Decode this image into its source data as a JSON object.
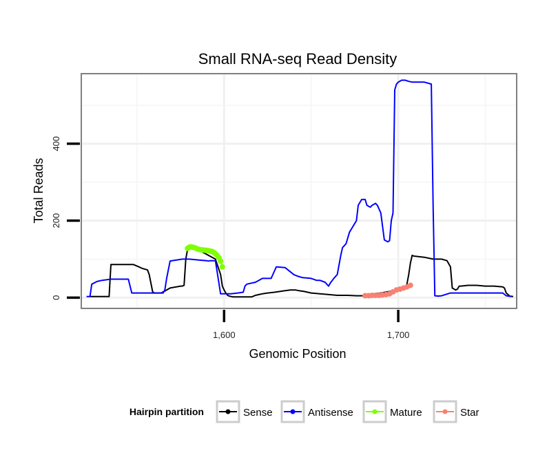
{
  "chart_data": {
    "type": "line",
    "title": "Small RNA-seq Read Density",
    "xlabel": "Genomic Position",
    "ylabel": "Total Reads",
    "xlim": [
      1518,
      1768
    ],
    "ylim": [
      -28,
      582
    ],
    "x_ticks": [
      1600,
      1700
    ],
    "x_tick_labels": [
      "1,600",
      "1,700"
    ],
    "y_ticks": [
      0,
      200,
      400
    ],
    "y_tick_labels": [
      "0",
      "200",
      "400"
    ],
    "grid": true,
    "legend": {
      "title": "Hairpin partition",
      "position": "bottom",
      "entries": [
        {
          "name": "Sense",
          "color": "#000000"
        },
        {
          "name": "Antisense",
          "color": "#0000ff"
        },
        {
          "name": "Mature",
          "color": "#7fff00"
        },
        {
          "name": "Star",
          "color": "#fa8072"
        }
      ]
    },
    "series": [
      {
        "name": "Sense",
        "color": "#000000",
        "style": "line",
        "x": [
          1523,
          1534,
          1535,
          1548,
          1551,
          1553,
          1556,
          1557,
          1559,
          1560,
          1562,
          1564,
          1565,
          1566,
          1569,
          1575,
          1576,
          1577,
          1578,
          1579,
          1580,
          1584,
          1587,
          1591,
          1595,
          1598,
          1599,
          1600,
          1601,
          1602,
          1603,
          1604,
          1605,
          1606,
          1609,
          1612,
          1616,
          1618,
          1620,
          1622,
          1625,
          1629,
          1632,
          1635,
          1638,
          1641,
          1643,
          1646,
          1650,
          1655,
          1660,
          1665,
          1671,
          1676,
          1681,
          1686,
          1690,
          1695,
          1700,
          1704,
          1705,
          1706,
          1707,
          1708,
          1709,
          1715,
          1720,
          1725,
          1728,
          1730,
          1731,
          1733,
          1734,
          1735,
          1736,
          1740,
          1745,
          1750,
          1755,
          1760,
          1761,
          1762,
          1763,
          1764,
          1766
        ],
        "y": [
          3,
          3,
          86,
          86,
          80,
          76,
          72,
          60,
          15,
          12,
          12,
          12,
          15,
          17,
          25,
          30,
          30,
          32,
          100,
          125,
          130,
          130,
          120,
          110,
          100,
          60,
          30,
          20,
          12,
          6,
          4,
          3,
          2,
          2,
          2,
          2,
          2,
          6,
          8,
          10,
          12,
          14,
          16,
          18,
          20,
          20,
          18,
          16,
          12,
          10,
          8,
          6,
          6,
          5,
          5,
          10,
          12,
          16,
          20,
          24,
          35,
          60,
          90,
          110,
          108,
          105,
          100,
          100,
          96,
          80,
          25,
          20,
          22,
          30,
          30,
          32,
          32,
          30,
          30,
          28,
          25,
          12,
          8,
          4,
          3
        ]
      },
      {
        "name": "Antisense",
        "color": "#0000ff",
        "style": "line",
        "x": [
          1521,
          1523,
          1524,
          1527,
          1530,
          1535,
          1545,
          1547,
          1548,
          1555,
          1560,
          1565,
          1566,
          1567,
          1569,
          1576,
          1580,
          1585,
          1590,
          1591,
          1592,
          1595,
          1598,
          1601,
          1604,
          1608,
          1611,
          1612,
          1613,
          1618,
          1620,
          1622,
          1625,
          1627,
          1630,
          1635,
          1640,
          1642,
          1645,
          1650,
          1653,
          1655,
          1658,
          1659,
          1660,
          1661,
          1662,
          1663,
          1664,
          1665,
          1667,
          1668,
          1670,
          1672,
          1676,
          1677,
          1679,
          1681,
          1682,
          1684,
          1685,
          1687,
          1688,
          1689,
          1690,
          1692,
          1694,
          1695,
          1696,
          1697,
          1698,
          1699,
          1700,
          1702,
          1704,
          1706,
          1708,
          1712,
          1715,
          1719,
          1720,
          1721,
          1723,
          1725,
          1730,
          1740,
          1750,
          1760,
          1762,
          1765
        ],
        "y": [
          3,
          3,
          35,
          42,
          45,
          48,
          48,
          12,
          12,
          12,
          12,
          12,
          20,
          50,
          95,
          100,
          100,
          98,
          96,
          95,
          96,
          96,
          10,
          10,
          10,
          12,
          14,
          30,
          35,
          40,
          45,
          50,
          50,
          50,
          80,
          78,
          60,
          56,
          52,
          50,
          45,
          45,
          40,
          35,
          30,
          38,
          44,
          50,
          55,
          60,
          110,
          130,
          140,
          170,
          200,
          240,
          255,
          255,
          240,
          235,
          240,
          245,
          240,
          230,
          220,
          150,
          145,
          148,
          200,
          220,
          540,
          555,
          560,
          565,
          565,
          562,
          560,
          560,
          560,
          555,
          240,
          5,
          4,
          5,
          12,
          12,
          12,
          12,
          5,
          3
        ]
      },
      {
        "name": "Mature",
        "color": "#7fff00",
        "style": "points",
        "x": [
          1579,
          1580,
          1581,
          1582,
          1583,
          1584,
          1585,
          1586,
          1587,
          1588,
          1589,
          1590,
          1591,
          1592,
          1593,
          1594,
          1595,
          1596,
          1597,
          1598,
          1599
        ],
        "y": [
          128,
          131,
          132,
          131,
          130,
          128,
          126,
          125,
          124,
          124,
          123,
          123,
          122,
          121,
          120,
          118,
          114,
          110,
          104,
          95,
          80
        ]
      },
      {
        "name": "Star",
        "color": "#fa8072",
        "style": "points",
        "x": [
          1681,
          1683,
          1685,
          1687,
          1689,
          1691,
          1693,
          1695,
          1697,
          1699,
          1701,
          1703,
          1705,
          1707
        ],
        "y": [
          5,
          5,
          6,
          6,
          6,
          7,
          8,
          10,
          15,
          20,
          22,
          25,
          28,
          32
        ]
      }
    ]
  }
}
